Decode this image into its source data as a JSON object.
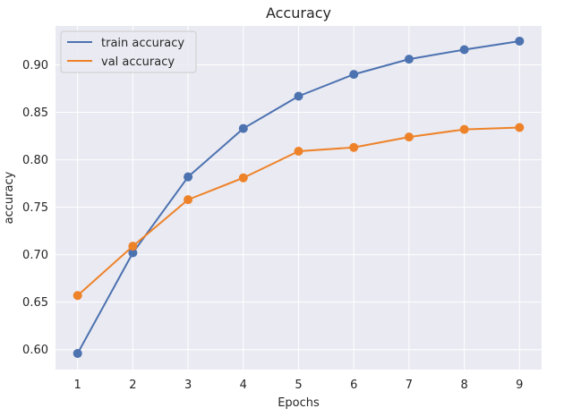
{
  "chart_data": {
    "type": "line",
    "title": "Accuracy",
    "xlabel": "Epochs",
    "ylabel": "accuracy",
    "x": [
      1,
      2,
      3,
      4,
      5,
      6,
      7,
      8,
      9
    ],
    "xlim": [
      0.6,
      9.4
    ],
    "ylim": [
      0.579,
      0.941
    ],
    "xticks": [
      1,
      2,
      3,
      4,
      5,
      6,
      7,
      8,
      9
    ],
    "yticks": [
      0.6,
      0.65,
      0.7,
      0.75,
      0.8,
      0.85,
      0.9
    ],
    "ytick_labels": [
      "0.60",
      "0.65",
      "0.70",
      "0.75",
      "0.80",
      "0.85",
      "0.90"
    ],
    "grid": true,
    "legend_position": "top-left",
    "background_color": "#eaeaf2",
    "series": [
      {
        "name": "train accuracy",
        "color": "#4c72b0",
        "values": [
          0.596,
          0.702,
          0.782,
          0.833,
          0.867,
          0.89,
          0.906,
          0.916,
          0.925
        ]
      },
      {
        "name": "val accuracy",
        "color": "#ee8228",
        "values": [
          0.657,
          0.709,
          0.758,
          0.781,
          0.809,
          0.813,
          0.824,
          0.832,
          0.834
        ]
      }
    ]
  }
}
